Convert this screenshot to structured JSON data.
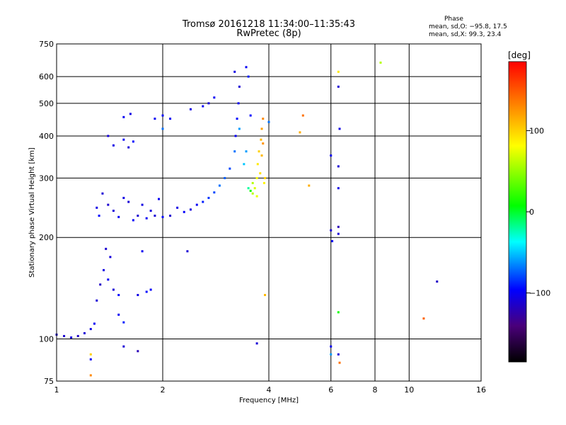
{
  "header": {
    "title_line1": "Tromsø 20161218 11:34:00–11:35:43",
    "title_line2": "RwPretec (8p)"
  },
  "phase_info": {
    "title": "Phase",
    "o_line": "mean, sd,O: −95.8, 17.5",
    "x_line": "mean, sd,X:  99.3, 23.4"
  },
  "colorbar": {
    "unit": "[deg]",
    "ticks": [
      {
        "value": 100,
        "label": "100"
      },
      {
        "value": 0,
        "label": "0"
      },
      {
        "value": -100,
        "label": "−100"
      }
    ],
    "range": [
      -185,
      185
    ]
  },
  "chart_data": {
    "type": "scatter",
    "xlabel": "Frequency [MHz]",
    "ylabel": "Stationary phase Virtual Height [km]",
    "x_scale": "log",
    "y_scale": "log",
    "xlim": [
      1,
      16
    ],
    "ylim": [
      75,
      750
    ],
    "x_ticks": [
      {
        "value": 1,
        "label": "1"
      },
      {
        "value": 2,
        "label": "2"
      },
      {
        "value": 4,
        "label": "4"
      },
      {
        "value": 6,
        "label": "6"
      },
      {
        "value": 8,
        "label": "8"
      },
      {
        "value": 10,
        "label": "10"
      },
      {
        "value": 16,
        "label": "16"
      }
    ],
    "y_ticks": [
      {
        "value": 75,
        "label": "75"
      },
      {
        "value": 100,
        "label": "100"
      },
      {
        "value": 200,
        "label": "200"
      },
      {
        "value": 300,
        "label": "300"
      },
      {
        "value": 400,
        "label": "400"
      },
      {
        "value": 500,
        "label": "500"
      },
      {
        "value": 600,
        "label": "600"
      },
      {
        "value": 750,
        "label": "750"
      }
    ],
    "grid": true,
    "color_by": "phase_deg",
    "points": [
      [
        1.0,
        103,
        -110
      ],
      [
        1.05,
        102,
        -112
      ],
      [
        1.1,
        101,
        -108
      ],
      [
        1.15,
        102,
        -115
      ],
      [
        1.2,
        104,
        -110
      ],
      [
        1.25,
        107,
        -105
      ],
      [
        1.28,
        111,
        -100
      ],
      [
        1.3,
        130,
        -110
      ],
      [
        1.33,
        145,
        -115
      ],
      [
        1.36,
        160,
        -105
      ],
      [
        1.4,
        150,
        -100
      ],
      [
        1.45,
        140,
        -110
      ],
      [
        1.5,
        135,
        -95
      ],
      [
        1.42,
        175,
        -108
      ],
      [
        1.38,
        185,
        -112
      ],
      [
        1.55,
        112,
        -90
      ],
      [
        1.5,
        118,
        -100
      ],
      [
        1.75,
        182,
        -100
      ],
      [
        1.8,
        138,
        -95
      ],
      [
        1.85,
        140,
        -98
      ],
      [
        1.7,
        135,
        -105
      ],
      [
        1.4,
        400,
        -108
      ],
      [
        1.45,
        375,
        -105
      ],
      [
        1.55,
        390,
        -100
      ],
      [
        1.6,
        370,
        -110
      ],
      [
        1.65,
        385,
        -95
      ],
      [
        1.55,
        455,
        -100
      ],
      [
        1.62,
        465,
        -105
      ],
      [
        1.9,
        450,
        -100
      ],
      [
        2.0,
        460,
        -95
      ],
      [
        2.1,
        450,
        -100
      ],
      [
        2.4,
        480,
        -105
      ],
      [
        2.6,
        490,
        -100
      ],
      [
        2.7,
        500,
        -110
      ],
      [
        2.8,
        520,
        -100
      ],
      [
        2.35,
        182,
        -110
      ],
      [
        1.3,
        245,
        -105
      ],
      [
        1.32,
        232,
        -95
      ],
      [
        1.35,
        270,
        -110
      ],
      [
        1.4,
        250,
        -112
      ],
      [
        1.45,
        240,
        -108
      ],
      [
        1.5,
        230,
        -100
      ],
      [
        1.55,
        262,
        -105
      ],
      [
        1.6,
        255,
        -110
      ],
      [
        1.65,
        225,
        -98
      ],
      [
        1.7,
        232,
        -112
      ],
      [
        1.75,
        250,
        -106
      ],
      [
        1.8,
        228,
        -100
      ],
      [
        1.85,
        240,
        -108
      ],
      [
        1.9,
        232,
        -110
      ],
      [
        1.95,
        260,
        -100
      ],
      [
        2.0,
        230,
        -95
      ],
      [
        2.1,
        232,
        -112
      ],
      [
        2.2,
        245,
        -105
      ],
      [
        2.3,
        238,
        -98
      ],
      [
        2.4,
        242,
        -108
      ],
      [
        2.5,
        250,
        -100
      ],
      [
        2.6,
        255,
        -90
      ],
      [
        2.7,
        262,
        -85
      ],
      [
        2.8,
        272,
        -80
      ],
      [
        2.9,
        285,
        -70
      ],
      [
        3.0,
        300,
        -75
      ],
      [
        3.1,
        320,
        -80
      ],
      [
        3.2,
        360,
        -70
      ],
      [
        3.22,
        400,
        -100
      ],
      [
        3.25,
        450,
        -95
      ],
      [
        3.28,
        500,
        -100
      ],
      [
        3.3,
        560,
        -110
      ],
      [
        3.2,
        620,
        -105
      ],
      [
        3.45,
        640,
        -100
      ],
      [
        3.5,
        600,
        -90
      ],
      [
        3.55,
        460,
        -95
      ],
      [
        3.3,
        420,
        -60
      ],
      [
        3.4,
        330,
        -50
      ],
      [
        3.45,
        360,
        -60
      ],
      [
        3.5,
        280,
        -20
      ],
      [
        3.55,
        275,
        10
      ],
      [
        3.6,
        270,
        60
      ],
      [
        3.65,
        280,
        70
      ],
      [
        3.7,
        300,
        80
      ],
      [
        3.72,
        330,
        90
      ],
      [
        3.75,
        360,
        100
      ],
      [
        3.8,
        390,
        110
      ],
      [
        3.82,
        420,
        120
      ],
      [
        3.85,
        450,
        130
      ],
      [
        3.78,
        310,
        95
      ],
      [
        3.82,
        350,
        110
      ],
      [
        3.88,
        290,
        85
      ],
      [
        3.85,
        380,
        125
      ],
      [
        3.9,
        300,
        100
      ],
      [
        3.7,
        265,
        75
      ],
      [
        3.6,
        290,
        60
      ],
      [
        4.0,
        440,
        -70
      ],
      [
        5.0,
        460,
        140
      ],
      [
        4.9,
        410,
        115
      ],
      [
        5.2,
        285,
        115
      ],
      [
        6.0,
        350,
        -100
      ],
      [
        6.0,
        210,
        -110
      ],
      [
        6.05,
        195,
        -100
      ],
      [
        6.3,
        620,
        90
      ],
      [
        6.3,
        560,
        -110
      ],
      [
        6.35,
        420,
        -105
      ],
      [
        6.3,
        325,
        -110
      ],
      [
        6.3,
        280,
        -105
      ],
      [
        6.3,
        215,
        -120
      ],
      [
        6.3,
        205,
        -110
      ],
      [
        6.3,
        120,
        10
      ],
      [
        6.3,
        90,
        -110
      ],
      [
        6.35,
        85,
        140
      ],
      [
        6.0,
        95,
        -100
      ],
      [
        6.0,
        90,
        -60
      ],
      [
        3.7,
        97,
        -110
      ],
      [
        3.9,
        135,
        110
      ],
      [
        8.3,
        660,
        60
      ],
      [
        11.0,
        115,
        145
      ],
      [
        12.0,
        148,
        -115
      ],
      [
        1.25,
        87,
        -100
      ],
      [
        1.25,
        90,
        100
      ],
      [
        1.55,
        95,
        -110
      ],
      [
        1.7,
        92,
        -120
      ],
      [
        1.25,
        78,
        130
      ],
      [
        2.0,
        420,
        -70
      ]
    ]
  }
}
